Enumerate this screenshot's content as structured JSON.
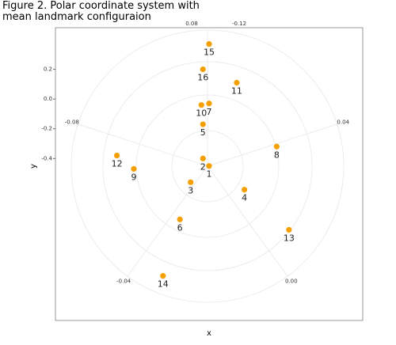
{
  "chart_data": {
    "type": "polar-scatter",
    "title": "Figure 2. Polar coordinate system with mean landmark configuraion",
    "x_label": "x",
    "y_label": "y",
    "labels": [
      "1",
      "2",
      "3",
      "4",
      "5",
      "6",
      "7",
      "8",
      "9",
      "10",
      "11",
      "12",
      "13",
      "14",
      "15",
      "16"
    ],
    "x": [
      0,
      -0.04,
      -0.12,
      0.23,
      -0.04,
      -0.19,
      0,
      0.44,
      -0.49,
      -0.05,
      0.18,
      -0.6,
      0.52,
      -0.3,
      0,
      -0.04
    ],
    "y": [
      -0.45,
      -0.4,
      -0.56,
      -0.61,
      -0.17,
      -0.81,
      -0.03,
      -0.32,
      -0.47,
      -0.04,
      0.11,
      -0.38,
      -0.88,
      -1.19,
      0.37,
      0.2
    ],
    "color": "#f5a000",
    "xlim": [
      -1,
      1
    ],
    "ylim": [
      -1.49,
      0.48
    ],
    "yticks": [
      0.2,
      {
        "value": 0,
        "label": "0.0"
      },
      -0.2,
      -0.4
    ],
    "thetalim": [
      -0.12,
      0.08
    ],
    "thetaticks": [
      -0.12,
      -0.08,
      -0.04,
      {
        "value": 0,
        "label": "0.00"
      },
      0.04,
      0.08
    ],
    "grid": true
  }
}
